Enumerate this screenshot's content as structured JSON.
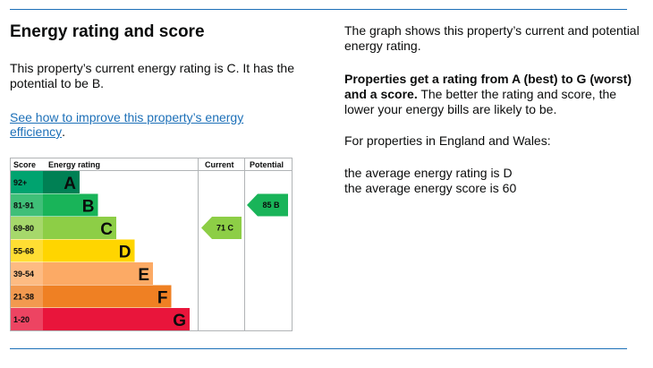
{
  "heading": "Energy rating and score",
  "summary": "This property’s current energy rating is C. It has the potential to be B.",
  "improve_link": "See how to improve this property’s energy efficiency",
  "improve_link_suffix": ".",
  "info": {
    "p1": "The graph shows this property’s current and potential energy rating.",
    "p2_bold": "Properties get a rating from A (best) to G (worst) and a score.",
    "p2_rest": " The better the rating and score, the lower your energy bills are likely to be.",
    "p3": "For properties in England and Wales:",
    "p4_line1": "the average energy rating is D",
    "p4_line2": "the average energy score is 60"
  },
  "chart_data": {
    "type": "table",
    "headers": {
      "score": "Score",
      "energy_rating": "Energy rating",
      "current": "Current",
      "potential": "Potential"
    },
    "bands": [
      {
        "range": "92+",
        "letter": "A",
        "color": "#008054",
        "range_color": "#00a36f"
      },
      {
        "range": "81-91",
        "letter": "B",
        "color": "#19b459",
        "range_color": "#3fbf78"
      },
      {
        "range": "69-80",
        "letter": "C",
        "color": "#8dce46",
        "range_color": "#a6d86b"
      },
      {
        "range": "55-68",
        "letter": "D",
        "color": "#ffd500",
        "range_color": "#ffde33"
      },
      {
        "range": "39-54",
        "letter": "E",
        "color": "#fcaa65",
        "range_color": "#fdbb83"
      },
      {
        "range": "21-38",
        "letter": "F",
        "color": "#ef8023",
        "range_color": "#f2994f"
      },
      {
        "range": "1-20",
        "letter": "G",
        "color": "#e9153b",
        "range_color": "#ed4462"
      }
    ],
    "current": {
      "score": 71,
      "letter": "C",
      "label": "71 C",
      "color": "#8dce46"
    },
    "potential": {
      "score": 85,
      "letter": "B",
      "label": "85 B",
      "color": "#19b459"
    }
  }
}
